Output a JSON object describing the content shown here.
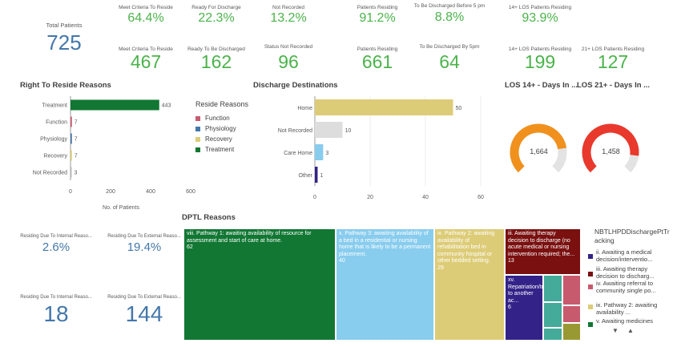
{
  "kpis": {
    "total_patients": {
      "label": "Total Patients",
      "value": "725"
    },
    "top_row": [
      {
        "label": "Meet Criteria To Reside",
        "value": "64.4%"
      },
      {
        "label": "Ready For Discharge",
        "value": "22.3%"
      },
      {
        "label": "Not Recorded",
        "value": "13.2%"
      },
      {
        "label": "Patients Residing",
        "value": "91.2%"
      },
      {
        "label": "To Be Discharged Before 5 pm",
        "value": "8.8%"
      },
      {
        "label": "14+ LOS Patients Residing",
        "value": "93.9%"
      }
    ],
    "second_row": [
      {
        "label": "Meet Criteria To Reside",
        "value": "467"
      },
      {
        "label": "Ready To Be Discharged",
        "value": "162"
      },
      {
        "label": "Status Not Recorded",
        "value": "96"
      },
      {
        "label": "Patients Residing",
        "value": "661"
      },
      {
        "label": "To Be Discharged By 5pm",
        "value": "64"
      },
      {
        "label": "14+ LOS Patients Residing",
        "value": "199"
      },
      {
        "label": "21+ LOS Patients Residing",
        "value": "127"
      }
    ],
    "bottom_left": [
      {
        "label": "Residing Due To Internal Reaso...",
        "value": "2.6%"
      },
      {
        "label": "Residing Due To External Reaso...",
        "value": "19.4%"
      },
      {
        "label": "Residing Due To Internal Reaso...",
        "value": "18"
      },
      {
        "label": "Residing Due To External Reaso...",
        "value": "144"
      }
    ]
  },
  "titles": {
    "right_to_reside": "Right To Reside Reasons",
    "discharge": "Discharge Destinations",
    "los14": "LOS 14+ - Days In ...",
    "los21": "LOS 21+ - Days In ...",
    "dptl": "DPTL Reasons"
  },
  "colors": {
    "function": "#c85a6e",
    "physiology": "#4477aa",
    "recovery": "#ddcc77",
    "treatment": "#117733",
    "kpi_green": "#4bb34b",
    "kpi_blue": "#4477aa",
    "gauge14": "#f0911e",
    "gauge21": "#e8392c"
  },
  "reside_legend": {
    "title": "Reside Reasons",
    "items": [
      "Function",
      "Physiology",
      "Recovery",
      "Treatment"
    ]
  },
  "gauges": [
    {
      "value": "1,664",
      "fill": 0.8
    },
    {
      "value": "1,458",
      "fill": 0.86
    }
  ],
  "chart_data": [
    {
      "type": "bar",
      "orientation": "horizontal",
      "title": "Right To Reside Reasons",
      "categories": [
        "Treatment",
        "Function",
        "Physiology",
        "Recovery",
        "Not Recorded"
      ],
      "values": [
        443,
        7,
        7,
        7,
        3
      ],
      "xlabel": "No. of Patients",
      "xlim": [
        0,
        600
      ],
      "xticks": [
        "0",
        "200",
        "400",
        "600"
      ]
    },
    {
      "type": "bar",
      "orientation": "horizontal",
      "title": "Discharge Destinations",
      "categories": [
        "Home",
        "Not Recorded",
        "Care Home",
        "Other"
      ],
      "values": [
        50,
        10,
        3,
        1
      ],
      "xlim": [
        0,
        60
      ],
      "xticks": [
        "0",
        "20",
        "40",
        "60"
      ]
    }
  ],
  "dptl": {
    "tiles": [
      {
        "text": "viii. Pathway 1: awaiting availability of resource for assessment and start of care at home.",
        "value": "62"
      },
      {
        "text": "x. Pathway 3: awaiting availability of a bed in a residential or nursing home that is likely to be a permanent placement.",
        "value": "40"
      },
      {
        "text": "ix. Pathway 2: awaiting availability of rehabilitation bed in community hospital or other bedded setting.",
        "value": "29"
      },
      {
        "text": "iii. Awaiting therapy decision to discharge (no acute medical or nursing intervention required; the...",
        "value": "13"
      },
      {
        "text": "xv. Repatriation/transfer to another ac...",
        "value": "6"
      }
    ],
    "legend_title": "NBTLHPDDischargePtTracking",
    "legend_items": [
      "ii. Awaiting a medical decision/interventio...",
      "iii. Awaiting therapy decision to discharg...",
      "iv. Awaiting referral to community single po...",
      "ix. Pathway 2: awaiting availability ...",
      "v. Awaiting medicines"
    ]
  }
}
